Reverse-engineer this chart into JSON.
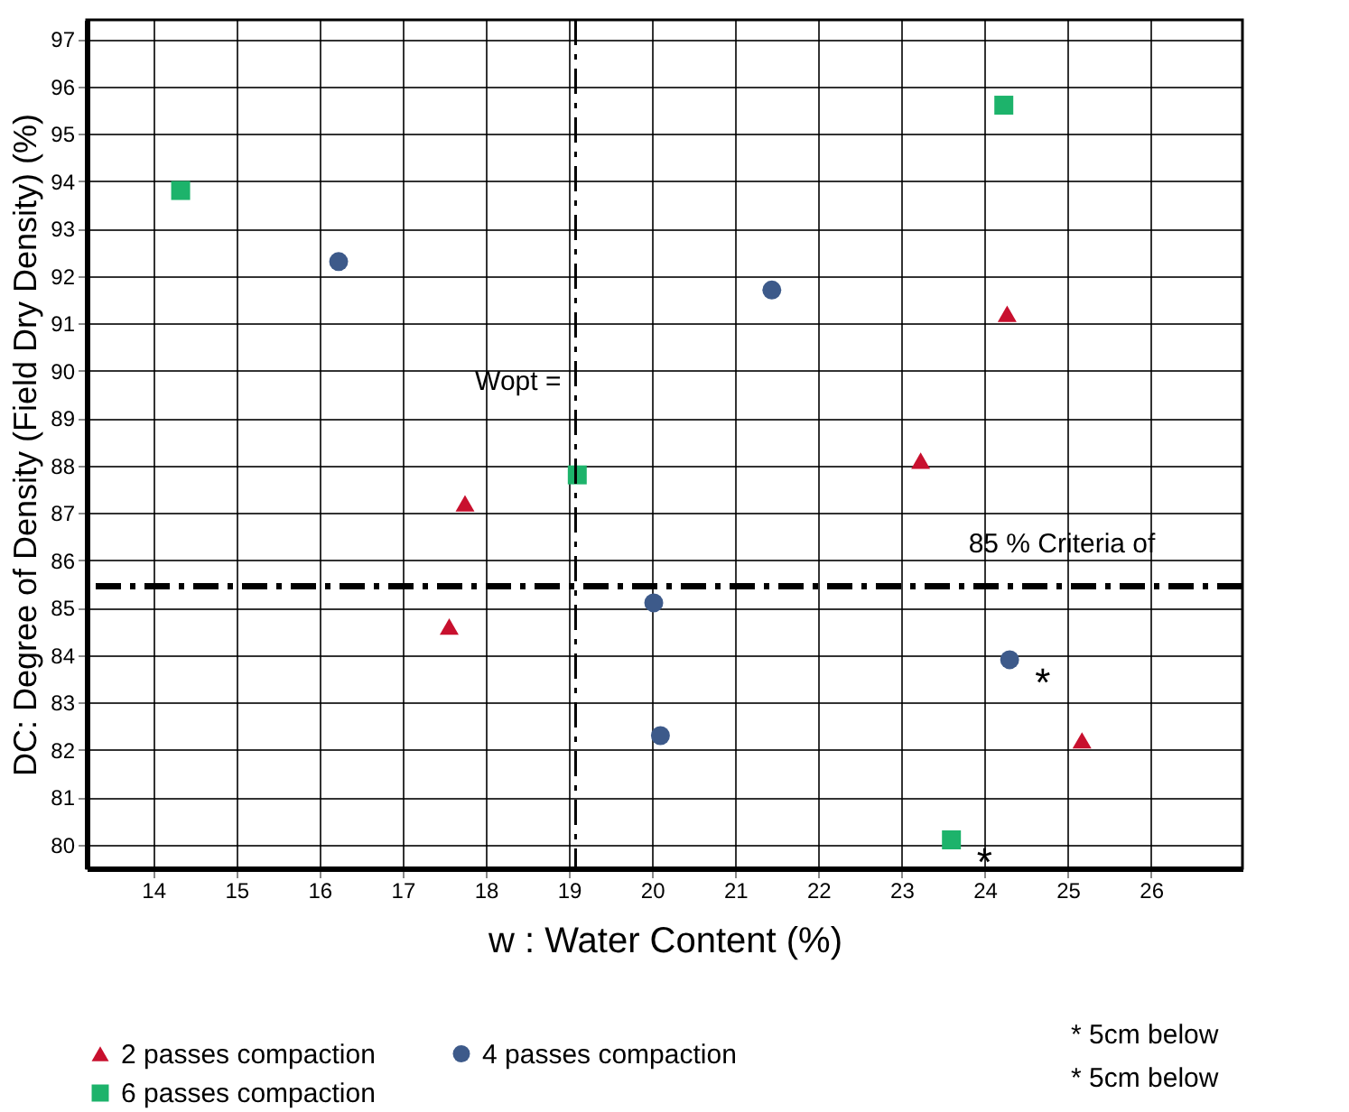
{
  "chart_data": {
    "type": "scatter",
    "xlabel": "w :  Water Content                    (%)",
    "ylabel": "DC: Degree of Density (Field Dry Density)     (%)",
    "xlim": [
      13.2,
      27.1
    ],
    "ylim": [
      79.5,
      97.4
    ],
    "xticks": [
      14,
      15,
      16,
      17,
      18,
      19,
      20,
      21,
      22,
      23,
      24,
      25,
      26
    ],
    "yticks": [
      80,
      81,
      82,
      83,
      84,
      85,
      86,
      87,
      88,
      89,
      90,
      91,
      92,
      93,
      94,
      95,
      96,
      97
    ],
    "grid": true,
    "legend": "bottom",
    "series": [
      {
        "name": "2 passes compaction",
        "color": "#c8102e",
        "marker": "triangle",
        "x": [
          17.75,
          17.56,
          23.23,
          24.27,
          25.17
        ],
        "values": [
          87.2,
          84.6,
          88.1,
          91.2,
          82.2
        ]
      },
      {
        "name": "4 passes compaction",
        "color": "#3d5a8a",
        "marker": "circle",
        "x": [
          16.23,
          21.44,
          20.02,
          20.1,
          24.3
        ],
        "values": [
          92.3,
          91.7,
          85.1,
          82.3,
          83.9
        ]
      },
      {
        "name": "6 passes compaction",
        "color": "#1db36b",
        "marker": "square",
        "x": [
          14.33,
          19.1,
          24.23,
          23.6
        ],
        "values": [
          93.8,
          87.8,
          95.6,
          80.1
        ]
      }
    ],
    "ref_lines": [
      {
        "axis": "x",
        "value": 19.08,
        "label": "Wopt =",
        "line_style": "dashdot"
      },
      {
        "axis": "y",
        "value": 85.45,
        "label": "85 % Criteria of",
        "line_style": "dashdot"
      }
    ],
    "annotations": [
      {
        "text": "*",
        "x": 24.3,
        "y": 83.9
      },
      {
        "text": "*",
        "x": 23.6,
        "y": 80.1
      },
      "* 5cm below",
      "* 5cm below"
    ]
  }
}
